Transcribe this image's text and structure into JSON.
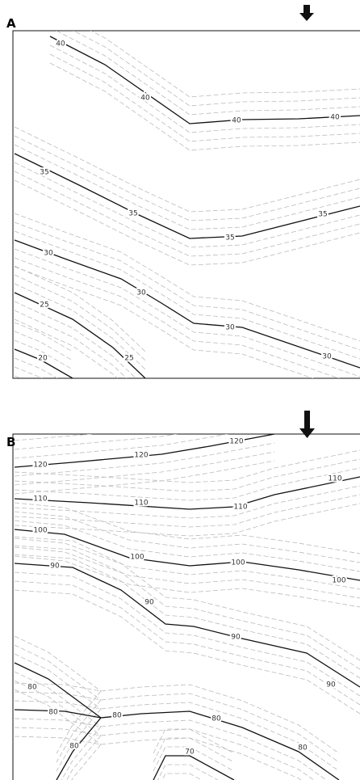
{
  "panels": [
    {
      "label": "A",
      "levels": [
        40,
        35,
        30,
        25,
        20
      ]
    },
    {
      "label": "B",
      "levels": [
        120,
        110,
        100,
        90,
        80,
        70
      ]
    }
  ]
}
